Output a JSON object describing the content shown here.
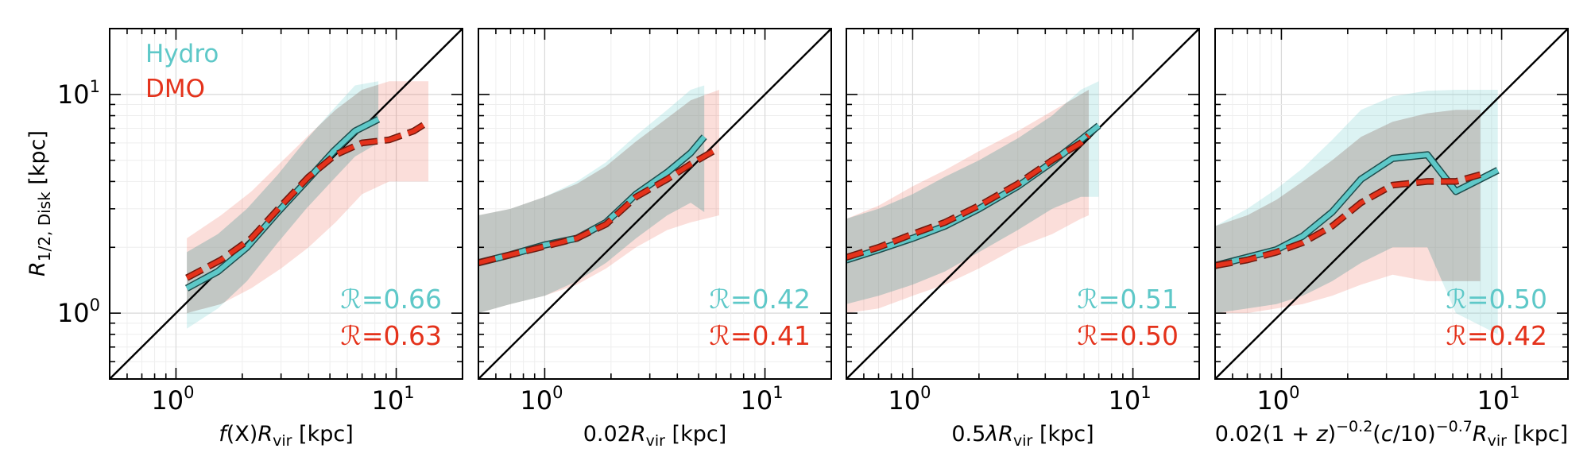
{
  "colors": {
    "hydro": "#5ec8c8",
    "dmo": "#e4321b",
    "overlap": "#cfd5d4"
  },
  "legend": {
    "hydro": "Hydro",
    "dmo": "DMO"
  },
  "ylabel": {
    "main": "R",
    "sub": "1/2, Disk",
    "unit": " [kpc]"
  },
  "chart_data": [
    {
      "type": "line",
      "xscale": "log",
      "yscale": "log",
      "xlim": [
        0.5,
        20
      ],
      "ylim": [
        0.5,
        20
      ],
      "xlabel": "f(X)R_vir [kpc]",
      "xlabel_parts": {
        "pre": "f",
        "mid": "(X)",
        "mid2": "R",
        "sub": "vir",
        "post": " [kpc]"
      },
      "xticks": [
        {
          "base": "10",
          "exp": "0",
          "value": 1
        },
        {
          "base": "10",
          "exp": "1",
          "value": 10
        }
      ],
      "yticks": [
        {
          "base": "10",
          "exp": "0",
          "value": 1
        },
        {
          "base": "10",
          "exp": "1",
          "value": 10
        }
      ],
      "correlation": {
        "hydro": "ℛ=0.66",
        "dmo": "ℛ=0.63"
      },
      "series": [
        {
          "name": "Hydro",
          "style": "solid",
          "x": [
            1.12,
            1.55,
            2.1,
            2.9,
            3.9,
            5.2,
            6.5,
            8.3
          ],
          "y": [
            1.3,
            1.55,
            2.0,
            2.9,
            4.0,
            5.5,
            6.8,
            7.7
          ],
          "band_low": [
            0.85,
            1.05,
            1.4,
            2.1,
            3.0,
            4.1,
            5.2,
            6.0
          ],
          "band_high": [
            1.9,
            2.3,
            3.0,
            4.3,
            6.2,
            8.6,
            11.0,
            11.5
          ]
        },
        {
          "name": "DMO",
          "style": "dashed",
          "x": [
            1.12,
            1.6,
            2.2,
            3.0,
            4.0,
            5.3,
            7.0,
            9.3,
            12.0,
            14.0
          ],
          "y": [
            1.45,
            1.75,
            2.2,
            3.1,
            4.2,
            5.3,
            6.0,
            6.2,
            6.8,
            7.5
          ],
          "band_low": [
            1.0,
            1.1,
            1.3,
            1.6,
            2.0,
            2.6,
            3.5,
            4.0,
            4.0,
            4.0
          ],
          "band_high": [
            2.2,
            2.8,
            3.6,
            4.9,
            6.5,
            8.5,
            10.5,
            11.5,
            11.5,
            11.5
          ]
        }
      ]
    },
    {
      "type": "line",
      "xscale": "log",
      "yscale": "log",
      "xlim": [
        0.5,
        20
      ],
      "ylim": [
        0.5,
        20
      ],
      "xlabel": "0.02R_vir [kpc]",
      "xlabel_parts": {
        "pre": "0.02",
        "mid": "",
        "mid2": "R",
        "sub": "vir",
        "post": " [kpc]"
      },
      "xticks": [
        {
          "base": "10",
          "exp": "0",
          "value": 1
        },
        {
          "base": "10",
          "exp": "1",
          "value": 10
        }
      ],
      "yticks": [
        {
          "base": "10",
          "exp": "0",
          "value": 1
        },
        {
          "base": "10",
          "exp": "1",
          "value": 10
        }
      ],
      "correlation": {
        "hydro": "ℛ=0.42",
        "dmo": "ℛ=0.41"
      },
      "series": [
        {
          "name": "Hydro",
          "style": "solid",
          "x": [
            0.5,
            0.7,
            1.0,
            1.4,
            1.9,
            2.6,
            3.6,
            4.6,
            5.3
          ],
          "y": [
            1.7,
            1.85,
            2.05,
            2.2,
            2.6,
            3.5,
            4.4,
            5.4,
            6.4
          ],
          "band_low": [
            1.0,
            1.1,
            1.2,
            1.4,
            1.7,
            2.2,
            2.8,
            3.2,
            2.9
          ],
          "band_high": [
            2.8,
            3.0,
            3.4,
            4.0,
            4.9,
            6.5,
            8.5,
            10.5,
            11.0
          ]
        },
        {
          "name": "DMO",
          "style": "dashed",
          "x": [
            0.5,
            0.7,
            1.0,
            1.4,
            1.9,
            2.6,
            3.6,
            4.6,
            6.2
          ],
          "y": [
            1.7,
            1.85,
            2.02,
            2.2,
            2.55,
            3.4,
            4.1,
            4.8,
            5.7
          ],
          "band_low": [
            1.0,
            1.1,
            1.2,
            1.35,
            1.6,
            2.0,
            2.4,
            2.6,
            2.8
          ],
          "band_high": [
            2.8,
            3.0,
            3.4,
            3.9,
            4.7,
            6.1,
            7.8,
            9.4,
            10.5
          ]
        }
      ]
    },
    {
      "type": "line",
      "xscale": "log",
      "yscale": "log",
      "xlim": [
        0.5,
        20
      ],
      "ylim": [
        0.5,
        20
      ],
      "xlabel": "0.5λR_vir [kpc]",
      "xlabel_parts": {
        "pre": "0.5",
        "mid": "λ",
        "mid2": "R",
        "sub": "vir",
        "post": " [kpc]"
      },
      "xticks": [
        {
          "base": "10",
          "exp": "0",
          "value": 1
        },
        {
          "base": "10",
          "exp": "1",
          "value": 10
        }
      ],
      "yticks": [
        {
          "base": "10",
          "exp": "0",
          "value": 1
        },
        {
          "base": "10",
          "exp": "1",
          "value": 10
        }
      ],
      "correlation": {
        "hydro": "ℛ=0.51",
        "dmo": "ℛ=0.50"
      },
      "series": [
        {
          "name": "Hydro",
          "style": "solid",
          "x": [
            0.5,
            0.7,
            1.0,
            1.4,
            2.0,
            3.0,
            4.3,
            5.8,
            7.0
          ],
          "y": [
            1.75,
            1.95,
            2.2,
            2.5,
            3.0,
            3.8,
            4.9,
            6.2,
            7.2
          ],
          "band_low": [
            1.1,
            1.2,
            1.35,
            1.55,
            1.9,
            2.4,
            3.0,
            3.4,
            3.4
          ],
          "band_high": [
            2.7,
            3.0,
            3.5,
            4.2,
            5.0,
            6.3,
            8.0,
            10.5,
            11.5
          ]
        },
        {
          "name": "DMO",
          "style": "dashed",
          "x": [
            0.5,
            0.7,
            1.0,
            1.4,
            2.0,
            3.0,
            4.3,
            5.8,
            6.3
          ],
          "y": [
            1.8,
            2.0,
            2.3,
            2.6,
            3.1,
            3.9,
            5.0,
            6.0,
            6.5
          ],
          "band_low": [
            1.0,
            1.05,
            1.2,
            1.35,
            1.6,
            2.0,
            2.3,
            2.7,
            2.8
          ],
          "band_high": [
            2.7,
            3.1,
            3.8,
            4.5,
            5.5,
            6.8,
            8.4,
            10.0,
            10.5
          ]
        }
      ]
    },
    {
      "type": "line",
      "xscale": "log",
      "yscale": "log",
      "xlim": [
        0.5,
        20
      ],
      "ylim": [
        0.5,
        20
      ],
      "xlabel": "0.02(1+z)^-0.2(c/10)^-0.7R_vir [kpc]",
      "xlabel_parts": {
        "pre": "0.02(1 + ",
        "mid": "z",
        "mid2": "R",
        "sub": "vir",
        "post": " [kpc]",
        "exp1": "−0.2",
        "exp2": "−0.7",
        "c": "c",
        "div": "/10)",
        "close": ")",
        "open": "("
      },
      "xticks": [
        {
          "base": "10",
          "exp": "0",
          "value": 1
        },
        {
          "base": "10",
          "exp": "1",
          "value": 10
        }
      ],
      "yticks": [
        {
          "base": "10",
          "exp": "0",
          "value": 1
        },
        {
          "base": "10",
          "exp": "1",
          "value": 10
        }
      ],
      "correlation": {
        "hydro": "ℛ=0.50",
        "dmo": "ℛ=0.42"
      },
      "series": [
        {
          "name": "Hydro",
          "style": "solid",
          "x": [
            0.5,
            0.7,
            0.95,
            1.25,
            1.7,
            2.3,
            3.2,
            4.6,
            6.2,
            9.6
          ],
          "y": [
            1.65,
            1.8,
            1.95,
            2.25,
            2.9,
            4.1,
            5.1,
            5.3,
            3.6,
            4.5
          ],
          "band_low": [
            1.0,
            1.05,
            1.1,
            1.2,
            1.4,
            1.7,
            2.0,
            2.0,
            1.0,
            0.8
          ],
          "band_high": [
            2.5,
            3.0,
            3.7,
            4.6,
            6.2,
            8.5,
            9.8,
            10.4,
            10.5,
            10.5
          ]
        },
        {
          "name": "DMO",
          "style": "dashed",
          "x": [
            0.5,
            0.7,
            0.95,
            1.25,
            1.7,
            2.3,
            3.2,
            4.6,
            6.2,
            8.0
          ],
          "y": [
            1.65,
            1.75,
            1.9,
            2.1,
            2.5,
            3.2,
            3.85,
            4.0,
            4.0,
            4.3
          ],
          "band_low": [
            1.0,
            1.0,
            1.05,
            1.1,
            1.2,
            1.35,
            1.5,
            1.4,
            1.4,
            1.4
          ],
          "band_high": [
            2.5,
            2.8,
            3.3,
            4.0,
            5.0,
            6.4,
            7.5,
            8.2,
            8.5,
            8.5
          ]
        }
      ]
    }
  ]
}
